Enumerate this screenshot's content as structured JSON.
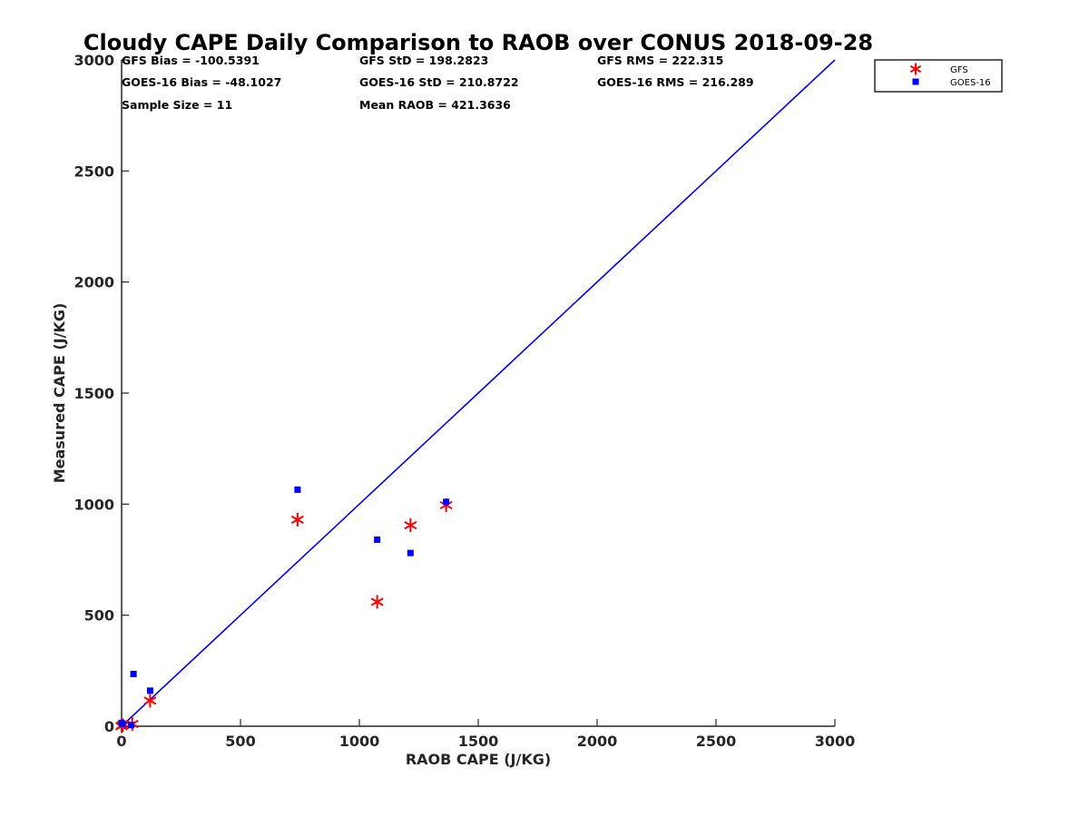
{
  "chart_data": {
    "type": "scatter",
    "title": "Cloudy CAPE Daily Comparison to RAOB over CONUS 2018-09-28",
    "xlabel": "RAOB CAPE (J/KG)",
    "ylabel": "Measured CAPE (J/KG)",
    "xlim": [
      0,
      3000
    ],
    "ylim": [
      0,
      3000
    ],
    "xticks": [
      "0",
      "500",
      "1000",
      "1500",
      "2000",
      "2500",
      "3000"
    ],
    "yticks": [
      "0",
      "500",
      "1000",
      "1500",
      "2000",
      "2500",
      "3000"
    ],
    "grid": false,
    "legend_position": "top-right, outside plot area",
    "series": [
      {
        "name": "GFS",
        "marker": "asterisk",
        "color": "#ff0000",
        "x": [
          0,
          5,
          45,
          120,
          740,
          1075,
          1215,
          1365
        ],
        "y": [
          0,
          5,
          10,
          115,
          930,
          560,
          905,
          995
        ]
      },
      {
        "name": "GOES-16",
        "marker": "square",
        "color": "#0000ff",
        "x": [
          0,
          5,
          40,
          50,
          120,
          740,
          1075,
          1215,
          1365
        ],
        "y": [
          15,
          10,
          5,
          235,
          160,
          1065,
          840,
          780,
          1010
        ]
      }
    ],
    "reference_line": {
      "color": "#0000ff",
      "x": [
        0,
        3000
      ],
      "y": [
        0,
        3000
      ]
    }
  },
  "stats": {
    "gfs_bias": "GFS Bias = -100.5391",
    "gfs_std": "GFS StD = 198.2823",
    "gfs_rms": "GFS RMS = 222.315",
    "goes_bias": "GOES-16 Bias = -48.1027",
    "goes_std": "GOES-16 StD = 210.8722",
    "goes_rms": "GOES-16 RMS = 216.289",
    "sample_size": "Sample Size = 11",
    "mean_raob": "Mean RAOB = 421.3636"
  }
}
